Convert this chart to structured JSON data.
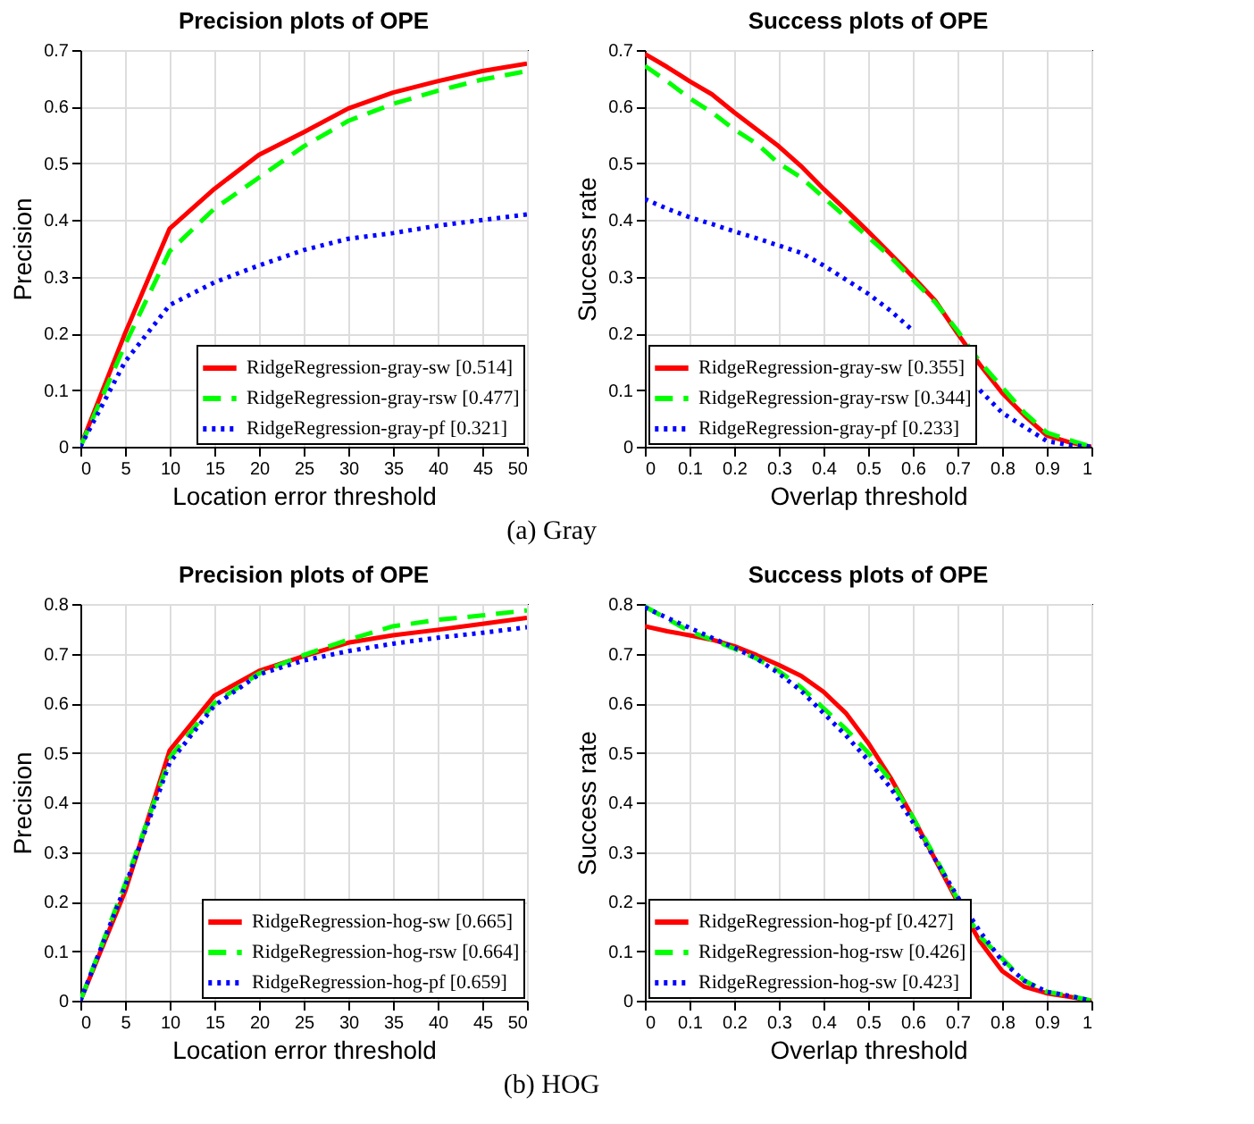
{
  "chart_data": [
    {
      "type": "line",
      "title": "Precision plots of OPE",
      "xlabel": "Location error threshold",
      "ylabel": "Precision",
      "annotations": [
        "(a) Gray"
      ],
      "x": [
        0,
        5,
        10,
        15,
        20,
        25,
        30,
        35,
        40,
        45,
        50
      ],
      "series": [
        {
          "name": "RidgeRegression-gray-sw [0.514]",
          "color": "#ff0000",
          "line_style": "solid",
          "values": [
            0,
            0.2,
            0.385,
            0.455,
            0.515,
            0.555,
            0.597,
            0.625,
            0.645,
            0.663,
            0.676
          ]
        },
        {
          "name": "RidgeRegression-gray-rsw [0.477]",
          "color": "#00ff00",
          "line_style": "dashed",
          "values": [
            0,
            0.18,
            0.345,
            0.42,
            0.475,
            0.53,
            0.575,
            0.605,
            0.628,
            0.648,
            0.663
          ]
        },
        {
          "name": "RidgeRegression-gray-pf [0.321]",
          "color": "#0000ff",
          "line_style": "dotted",
          "values": [
            0,
            0.15,
            0.25,
            0.29,
            0.32,
            0.347,
            0.367,
            0.377,
            0.39,
            0.4,
            0.41
          ]
        }
      ],
      "xlim": [
        0,
        50
      ],
      "xticks": [
        0,
        5,
        10,
        15,
        20,
        25,
        30,
        35,
        40,
        45,
        50
      ],
      "ylim": [
        0,
        0.7
      ],
      "yticks": [
        0,
        0.1,
        0.2,
        0.3,
        0.4,
        0.5,
        0.6,
        0.7
      ],
      "grid": true,
      "legend": "bottom right"
    },
    {
      "type": "line",
      "title": "Success plots of OPE",
      "xlabel": "Overlap threshold",
      "ylabel": "Success rate",
      "x": [
        0,
        0.05,
        0.1,
        0.15,
        0.2,
        0.25,
        0.3,
        0.35,
        0.4,
        0.45,
        0.5,
        0.55,
        0.6,
        0.65,
        0.7,
        0.75,
        0.8,
        0.85,
        0.9,
        0.95,
        1
      ],
      "series": [
        {
          "name": "RidgeRegression-gray-sw [0.355]",
          "color": "#ff0000",
          "line_style": "solid",
          "values": [
            0.693,
            0.67,
            0.645,
            0.622,
            0.59,
            0.56,
            0.53,
            0.495,
            0.455,
            0.418,
            0.38,
            0.34,
            0.3,
            0.258,
            0.2,
            0.145,
            0.095,
            0.055,
            0.02,
            0.008,
            0
          ]
        },
        {
          "name": "RidgeRegression-gray-rsw [0.344]",
          "color": "#00ff00",
          "line_style": "dashed",
          "values": [
            0.672,
            0.645,
            0.615,
            0.59,
            0.56,
            0.535,
            0.5,
            0.475,
            0.44,
            0.405,
            0.37,
            0.335,
            0.295,
            0.255,
            0.205,
            0.15,
            0.105,
            0.06,
            0.025,
            0.012,
            0
          ]
        },
        {
          "name": "RidgeRegression-gray-pf [0.233]",
          "color": "#0000ff",
          "line_style": "dotted",
          "values": [
            0.437,
            0.42,
            0.405,
            0.393,
            0.38,
            0.368,
            0.355,
            0.342,
            0.32,
            0.295,
            0.27,
            0.24,
            0.205,
            null,
            null,
            0.1,
            0.06,
            0.035,
            0.01,
            0.003,
            0
          ]
        }
      ],
      "xlim": [
        0,
        1
      ],
      "xticks": [
        0,
        0.1,
        0.2,
        0.3,
        0.4,
        0.5,
        0.6,
        0.7,
        0.8,
        0.9,
        1
      ],
      "ylim": [
        0,
        0.7
      ],
      "yticks": [
        0,
        0.1,
        0.2,
        0.3,
        0.4,
        0.5,
        0.6,
        0.7
      ],
      "grid": true,
      "legend": "bottom left"
    },
    {
      "type": "line",
      "title": "Precision plots of OPE",
      "xlabel": "Location error threshold",
      "ylabel": "Precision",
      "annotations": [
        "(b) HOG"
      ],
      "x": [
        0,
        5,
        10,
        15,
        20,
        25,
        30,
        35,
        40,
        45,
        50
      ],
      "series": [
        {
          "name": "RidgeRegression-hog-sw [0.665]",
          "color": "#ff0000",
          "line_style": "solid",
          "values": [
            0,
            0.22,
            0.505,
            0.615,
            0.665,
            0.695,
            0.722,
            0.737,
            0.748,
            0.76,
            0.772
          ]
        },
        {
          "name": "RidgeRegression-hog-rsw [0.664]",
          "color": "#00ff00",
          "line_style": "dashed",
          "values": [
            0,
            0.235,
            0.49,
            0.6,
            0.66,
            0.697,
            0.728,
            0.755,
            0.768,
            0.777,
            0.787
          ]
        },
        {
          "name": "RidgeRegression-hog-pf [0.659]",
          "color": "#0000ff",
          "line_style": "dotted",
          "values": [
            0,
            0.23,
            0.48,
            0.595,
            0.658,
            0.686,
            0.705,
            0.72,
            0.732,
            0.742,
            0.753
          ]
        }
      ],
      "xlim": [
        0,
        50
      ],
      "xticks": [
        0,
        5,
        10,
        15,
        20,
        25,
        30,
        35,
        40,
        45,
        50
      ],
      "ylim": [
        0,
        0.8
      ],
      "yticks": [
        0,
        0.1,
        0.2,
        0.3,
        0.4,
        0.5,
        0.6,
        0.7,
        0.8
      ],
      "grid": true,
      "legend": "bottom right"
    },
    {
      "type": "line",
      "title": "Success plots of OPE",
      "xlabel": "Overlap threshold",
      "ylabel": "Success rate",
      "x": [
        0,
        0.05,
        0.1,
        0.15,
        0.2,
        0.25,
        0.3,
        0.35,
        0.4,
        0.45,
        0.5,
        0.55,
        0.6,
        0.65,
        0.7,
        0.75,
        0.8,
        0.85,
        0.9,
        0.95,
        1
      ],
      "series": [
        {
          "name": "RidgeRegression-hog-pf [0.427]",
          "color": "#ff0000",
          "line_style": "solid",
          "values": [
            0.755,
            0.745,
            0.737,
            0.728,
            0.715,
            0.697,
            0.677,
            0.655,
            0.623,
            0.58,
            0.52,
            0.45,
            0.37,
            0.285,
            0.2,
            0.12,
            0.06,
            0.028,
            0.015,
            0.008,
            0
          ]
        },
        {
          "name": "RidgeRegression-hog-rsw [0.426]",
          "color": "#00ff00",
          "line_style": "dashed",
          "values": [
            0.795,
            0.77,
            0.745,
            0.728,
            0.71,
            0.69,
            0.665,
            0.632,
            0.59,
            0.548,
            0.5,
            0.445,
            0.37,
            0.29,
            0.205,
            0.13,
            0.085,
            0.04,
            0.018,
            0.01,
            0
          ]
        },
        {
          "name": "RidgeRegression-hog-sw [0.423]",
          "color": "#0000ff",
          "line_style": "dotted",
          "values": [
            0.793,
            0.772,
            0.752,
            0.732,
            0.712,
            0.69,
            0.66,
            0.625,
            0.58,
            0.535,
            0.485,
            0.43,
            0.36,
            0.285,
            0.21,
            0.14,
            0.08,
            0.04,
            0.018,
            0.01,
            0
          ]
        }
      ],
      "xlim": [
        0,
        1
      ],
      "xticks": [
        0,
        0.1,
        0.2,
        0.3,
        0.4,
        0.5,
        0.6,
        0.7,
        0.8,
        0.9,
        1
      ],
      "ylim": [
        0,
        0.8
      ],
      "yticks": [
        0,
        0.1,
        0.2,
        0.3,
        0.4,
        0.5,
        0.6,
        0.7,
        0.8
      ],
      "grid": true,
      "legend": "bottom left"
    }
  ]
}
